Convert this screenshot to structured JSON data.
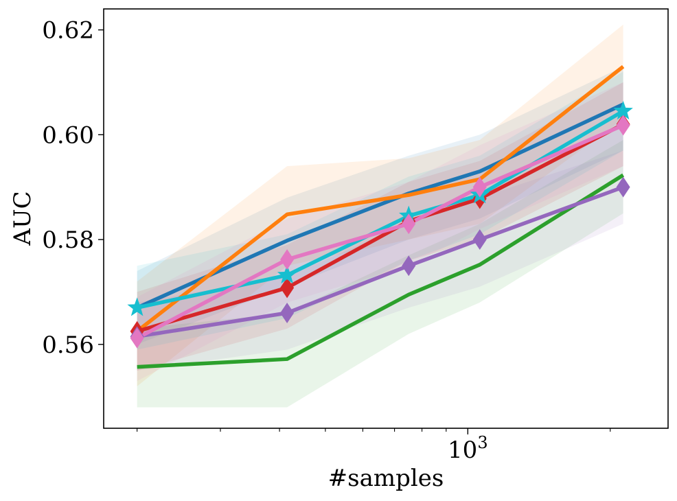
{
  "chart_data": {
    "type": "line",
    "xscale": "log",
    "xlabel": "#samples",
    "ylabel": "AUC",
    "xlim": [
      170,
      2650
    ],
    "ylim": [
      0.544,
      0.624
    ],
    "y_ticks": [
      0.56,
      0.58,
      0.6,
      0.62
    ],
    "y_tick_labels": [
      "0.56",
      "0.58",
      "0.60",
      "0.62"
    ],
    "x_major_ticks": [
      1000
    ],
    "x_major_tick_labels": [
      {
        "base": "10",
        "exp": "3"
      }
    ],
    "x_minor_ticks": [
      200,
      300,
      400,
      500,
      600,
      700,
      800,
      900,
      2000
    ],
    "x": [
      200,
      415,
      750,
      1060,
      2130
    ],
    "series": [
      {
        "name": "blue",
        "color": "#1f77b4",
        "marker": "none",
        "values": [
          0.567,
          0.5798,
          0.5888,
          0.593,
          0.6058
        ],
        "lower": [
          0.56,
          0.571,
          0.58,
          0.584,
          0.597
        ],
        "upper": [
          0.574,
          0.588,
          0.596,
          0.6,
          0.613
        ]
      },
      {
        "name": "orange",
        "color": "#ff7f0e",
        "marker": "none",
        "values": [
          0.5625,
          0.5848,
          0.5885,
          0.5915,
          0.613
        ],
        "lower": [
          0.552,
          0.575,
          0.58,
          0.583,
          0.603
        ],
        "upper": [
          0.572,
          0.594,
          0.5955,
          0.599,
          0.621
        ]
      },
      {
        "name": "green",
        "color": "#2ca02c",
        "marker": "none",
        "values": [
          0.5557,
          0.5572,
          0.5695,
          0.5752,
          0.5923
        ],
        "lower": [
          0.548,
          0.548,
          0.562,
          0.568,
          0.585
        ],
        "upper": [
          0.563,
          0.566,
          0.577,
          0.583,
          0.599
        ]
      },
      {
        "name": "red",
        "color": "#d62728",
        "marker": "diamond",
        "values": [
          0.5625,
          0.5708,
          0.5835,
          0.5878,
          0.602
        ],
        "lower": [
          0.555,
          0.563,
          0.576,
          0.58,
          0.594
        ],
        "upper": [
          0.57,
          0.579,
          0.591,
          0.595,
          0.61
        ]
      },
      {
        "name": "purple",
        "color": "#9467bd",
        "marker": "diamond",
        "values": [
          0.5615,
          0.566,
          0.575,
          0.58,
          0.59
        ],
        "lower": [
          0.555,
          0.559,
          0.567,
          0.571,
          0.583
        ],
        "upper": [
          0.568,
          0.573,
          0.583,
          0.588,
          0.597
        ]
      },
      {
        "name": "cyan",
        "color": "#17becf",
        "marker": "star",
        "values": [
          0.567,
          0.5732,
          0.5845,
          0.5885,
          0.6045
        ],
        "lower": [
          0.559,
          0.565,
          0.576,
          0.581,
          0.597
        ],
        "upper": [
          0.575,
          0.581,
          0.592,
          0.596,
          0.612
        ]
      },
      {
        "name": "pink",
        "color": "#e377c2",
        "marker": "diamond",
        "values": [
          0.5612,
          0.5762,
          0.583,
          0.59,
          0.6018
        ],
        "lower": [
          0.553,
          0.568,
          0.575,
          0.582,
          0.594
        ],
        "upper": [
          0.569,
          0.584,
          0.591,
          0.598,
          0.61
        ]
      }
    ]
  }
}
